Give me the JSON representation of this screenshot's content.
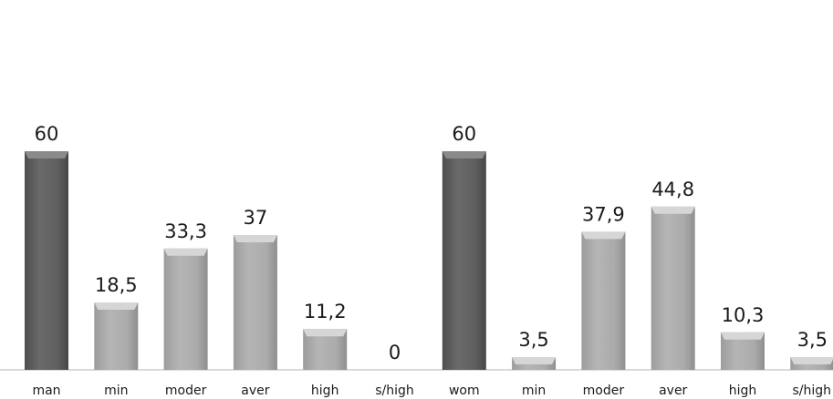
{
  "chart_data": {
    "type": "bar",
    "categories": [
      "man",
      "min",
      "moder",
      "aver",
      "high",
      "s/high",
      "wom",
      "min",
      "moder",
      "aver",
      "high",
      "s/high"
    ],
    "values": [
      60,
      18.5,
      33.3,
      37,
      11.2,
      0,
      60,
      3.5,
      37.9,
      44.8,
      10.3,
      3.5
    ],
    "data_labels": [
      "60",
      "18,5",
      "33,3",
      "37",
      "11,2",
      "0",
      "60",
      "3,5",
      "37,9",
      "44,8",
      "10,3",
      "3,5"
    ],
    "title": "",
    "xlabel": "",
    "ylabel": "",
    "ylim": [
      0,
      70
    ],
    "grid": false,
    "legend": "none",
    "colors": {
      "total_bar": "#5e5e5e",
      "total_bar_top": "#8a8a8a",
      "level_bar": "#a9a9a9",
      "level_bar_top": "#d6d6d6",
      "baseline": "#9a9a9a"
    },
    "total_categories": [
      "man",
      "wom"
    ]
  }
}
